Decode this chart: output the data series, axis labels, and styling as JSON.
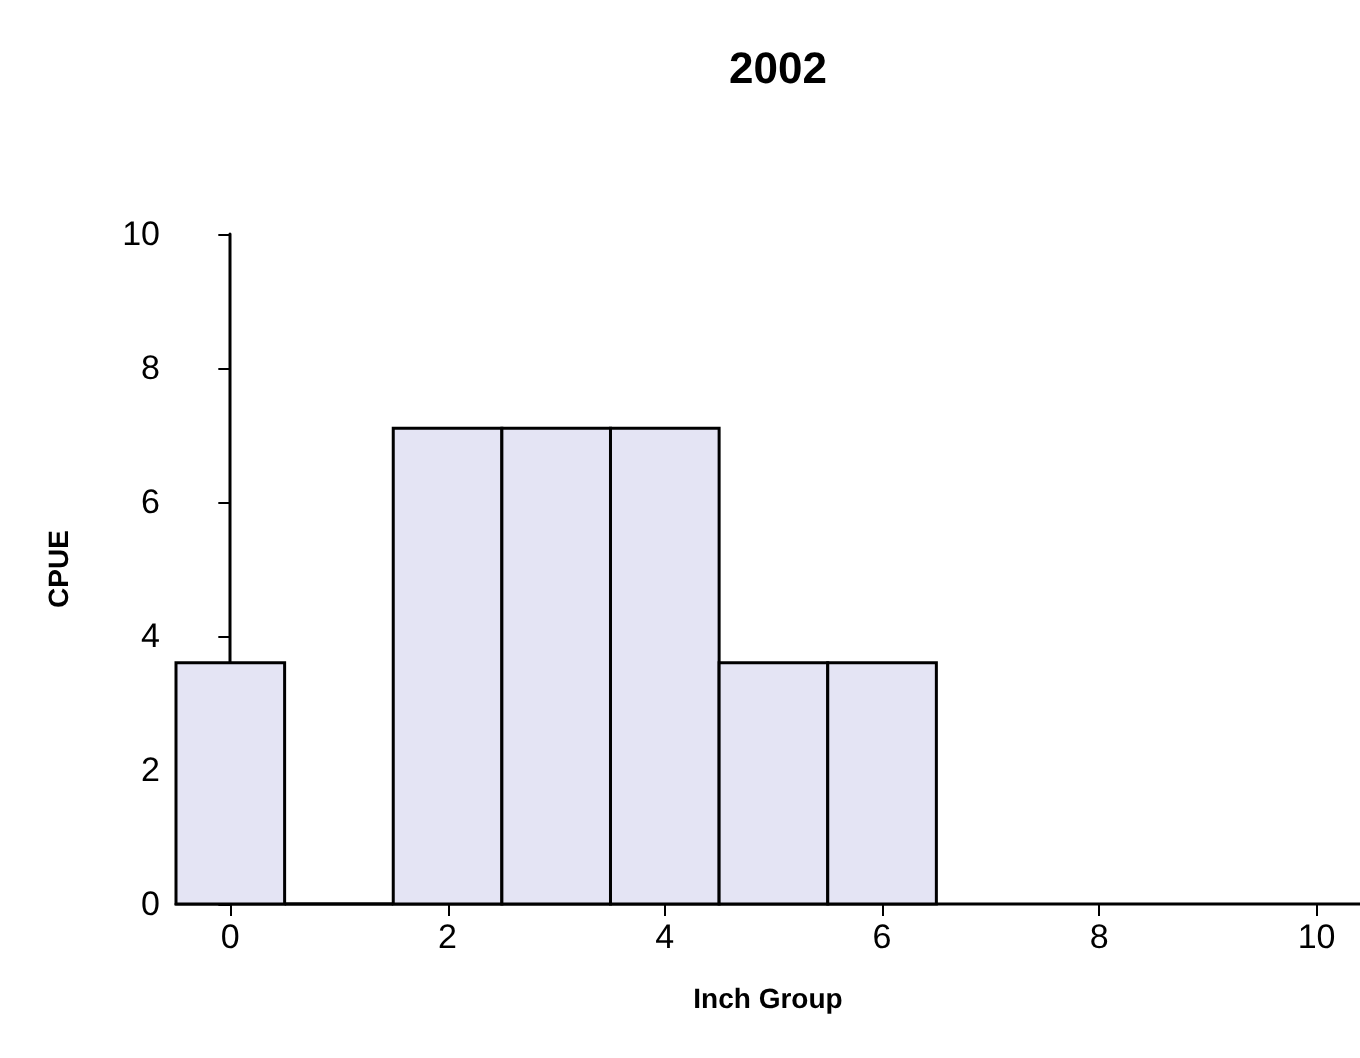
{
  "chart_data": {
    "type": "histogram",
    "title": "2002",
    "xlabel": "Inch Group",
    "ylabel": "CPUE",
    "bins": [
      -0.5,
      0.5,
      1.5,
      2.5,
      3.5,
      4.5,
      5.5,
      6.5
    ],
    "values": [
      3.6,
      0,
      7.1,
      7.1,
      7.1,
      3.6,
      3.6
    ],
    "color": "#e4e4f4",
    "xlim": [
      -0.5,
      10.4
    ],
    "xticks": [
      0,
      2,
      4,
      6,
      8,
      10
    ],
    "ylim": [
      0,
      10
    ],
    "yticks": [
      0,
      2,
      4,
      6,
      8,
      10
    ],
    "grid": false
  }
}
